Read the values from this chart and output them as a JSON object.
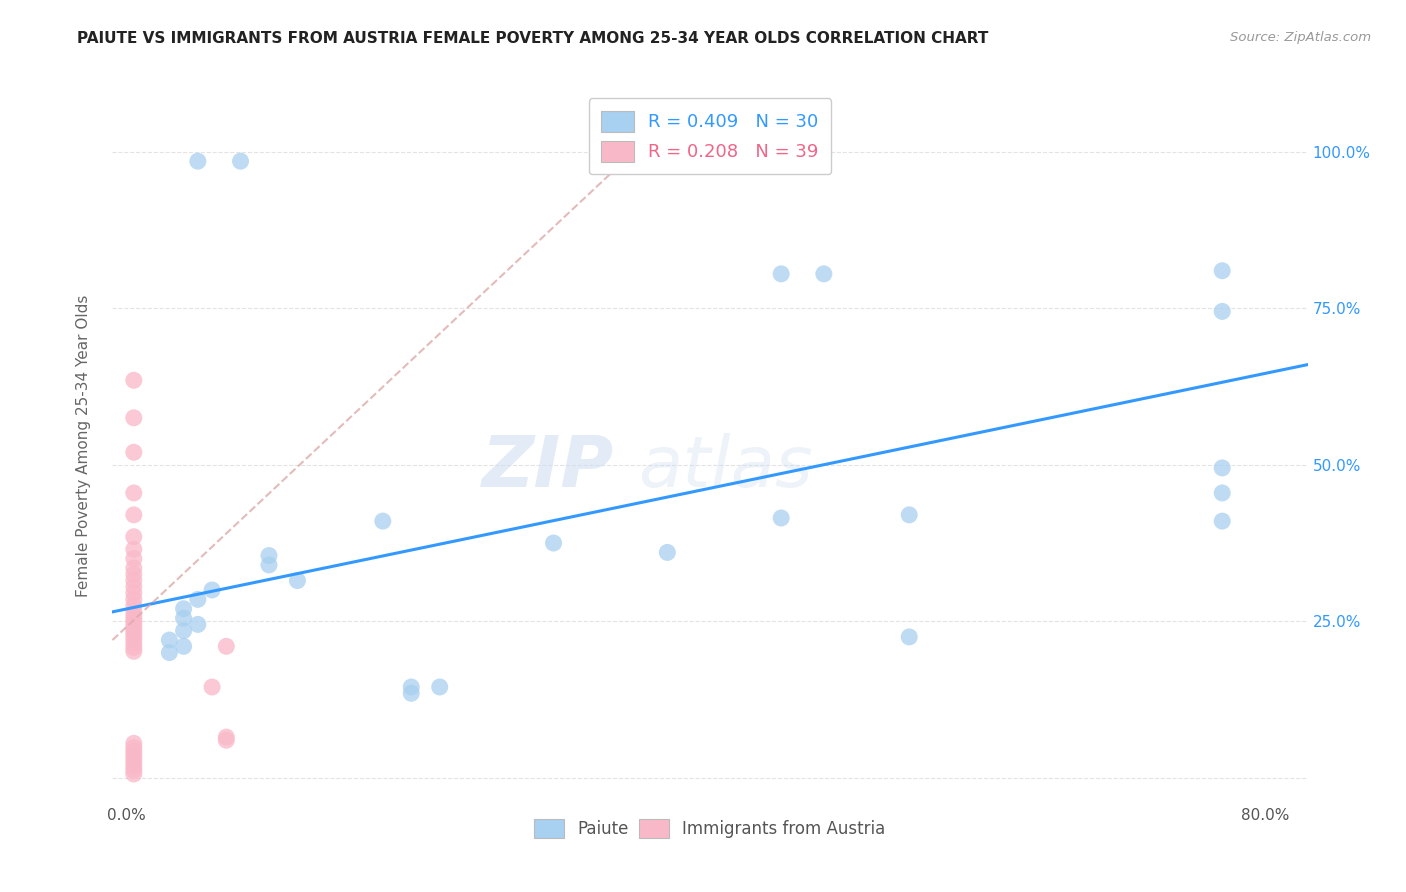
{
  "title": "PAIUTE VS IMMIGRANTS FROM AUSTRIA FEMALE POVERTY AMONG 25-34 YEAR OLDS CORRELATION CHART",
  "source": "Source: ZipAtlas.com",
  "ylabel": "Female Poverty Among 25-34 Year Olds",
  "xlim": [
    -0.01,
    0.83
  ],
  "ylim": [
    -0.04,
    1.1
  ],
  "x_ticks": [
    0.0,
    0.1,
    0.2,
    0.3,
    0.4,
    0.5,
    0.6,
    0.7,
    0.8
  ],
  "x_tick_labels": [
    "0.0%",
    "",
    "",
    "",
    "",
    "",
    "",
    "",
    "80.0%"
  ],
  "y_ticks": [
    0.0,
    0.25,
    0.5,
    0.75,
    1.0
  ],
  "y_tick_labels": [
    "",
    "25.0%",
    "50.0%",
    "75.0%",
    "100.0%"
  ],
  "paiute_scatter": [
    [
      0.05,
      0.985
    ],
    [
      0.08,
      0.985
    ],
    [
      0.46,
      0.805
    ],
    [
      0.49,
      0.805
    ],
    [
      0.77,
      0.81
    ],
    [
      0.77,
      0.745
    ],
    [
      0.77,
      0.495
    ],
    [
      0.77,
      0.455
    ],
    [
      0.77,
      0.41
    ],
    [
      0.55,
      0.42
    ],
    [
      0.46,
      0.415
    ],
    [
      0.18,
      0.41
    ],
    [
      0.3,
      0.375
    ],
    [
      0.38,
      0.36
    ],
    [
      0.1,
      0.355
    ],
    [
      0.1,
      0.34
    ],
    [
      0.12,
      0.315
    ],
    [
      0.55,
      0.225
    ],
    [
      0.06,
      0.3
    ],
    [
      0.05,
      0.285
    ],
    [
      0.04,
      0.27
    ],
    [
      0.04,
      0.255
    ],
    [
      0.05,
      0.245
    ],
    [
      0.04,
      0.235
    ],
    [
      0.03,
      0.22
    ],
    [
      0.04,
      0.21
    ],
    [
      0.03,
      0.2
    ],
    [
      0.2,
      0.145
    ],
    [
      0.22,
      0.145
    ],
    [
      0.2,
      0.135
    ]
  ],
  "austria_scatter": [
    [
      0.005,
      0.635
    ],
    [
      0.005,
      0.575
    ],
    [
      0.005,
      0.52
    ],
    [
      0.005,
      0.455
    ],
    [
      0.005,
      0.42
    ],
    [
      0.005,
      0.385
    ],
    [
      0.005,
      0.365
    ],
    [
      0.005,
      0.35
    ],
    [
      0.005,
      0.335
    ],
    [
      0.005,
      0.325
    ],
    [
      0.005,
      0.315
    ],
    [
      0.005,
      0.305
    ],
    [
      0.005,
      0.295
    ],
    [
      0.005,
      0.285
    ],
    [
      0.005,
      0.275
    ],
    [
      0.005,
      0.265
    ],
    [
      0.005,
      0.258
    ],
    [
      0.005,
      0.252
    ],
    [
      0.005,
      0.246
    ],
    [
      0.005,
      0.24
    ],
    [
      0.005,
      0.234
    ],
    [
      0.005,
      0.228
    ],
    [
      0.005,
      0.222
    ],
    [
      0.005,
      0.215
    ],
    [
      0.005,
      0.208
    ],
    [
      0.005,
      0.202
    ],
    [
      0.07,
      0.21
    ],
    [
      0.06,
      0.145
    ],
    [
      0.07,
      0.065
    ],
    [
      0.07,
      0.06
    ],
    [
      0.005,
      0.055
    ],
    [
      0.005,
      0.048
    ],
    [
      0.005,
      0.042
    ],
    [
      0.005,
      0.036
    ],
    [
      0.005,
      0.03
    ],
    [
      0.005,
      0.024
    ],
    [
      0.005,
      0.018
    ],
    [
      0.005,
      0.012
    ],
    [
      0.005,
      0.006
    ]
  ],
  "paiute_color": "#a8d0f0",
  "austria_color": "#f9b8c8",
  "paiute_line_color": "#3399ff",
  "austria_line_color": "#ddaaaa",
  "paiute_line": {
    "x0": -0.01,
    "y0": 0.265,
    "x1": 0.83,
    "y1": 0.66
  },
  "austria_line": {
    "x0": -0.01,
    "y0": 0.22,
    "x1": 0.38,
    "y1": 1.05
  },
  "background_color": "#ffffff",
  "grid_color": "#e0e0e0",
  "watermark": "ZIPatlas",
  "legend_r1": "R = 0.409   N = 30",
  "legend_r2": "R = 0.208   N = 39",
  "legend_color1": "#3399ff",
  "legend_color2": "#ee6688"
}
